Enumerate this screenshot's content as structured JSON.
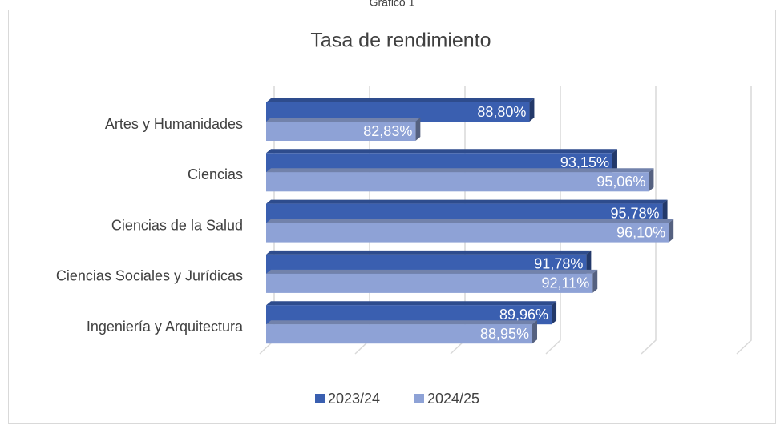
{
  "caption": "Gráfico 1",
  "chart_data": {
    "type": "bar",
    "orientation": "horizontal",
    "title": "Tasa de rendimiento",
    "categories": [
      "Artes y Humanidades",
      "Ciencias",
      "Ciencias de la Salud",
      "Ciencias Sociales y Jurídicas",
      "Ingeniería y Arquitectura"
    ],
    "series": [
      {
        "name": "2023/24",
        "color": "#3a5fb0",
        "values": [
          88.8,
          93.15,
          95.78,
          91.78,
          89.96
        ],
        "value_labels": [
          "88,80%",
          "93,15%",
          "95,78%",
          "91,78%",
          "89,96%"
        ]
      },
      {
        "name": "2024/25",
        "color": "#8ea2d6",
        "values": [
          82.83,
          95.06,
          96.1,
          92.11,
          88.95
        ],
        "value_labels": [
          "82,83%",
          "95,06%",
          "96,10%",
          "92,11%",
          "88,95%"
        ]
      }
    ],
    "xlim": [
      75,
      100
    ],
    "xticks": [
      75,
      80,
      85,
      90,
      95,
      100
    ],
    "grid": true,
    "legend": "bottom"
  }
}
